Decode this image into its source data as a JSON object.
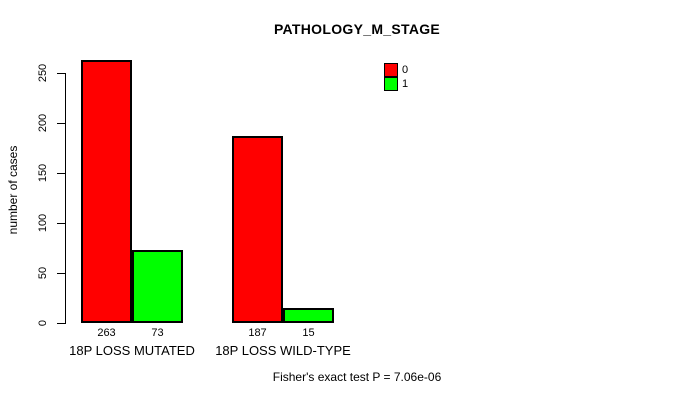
{
  "chart_data": {
    "type": "bar",
    "title": "PATHOLOGY_M_STAGE",
    "ylabel": "number of cases",
    "xlabel": "",
    "ylim": [
      0,
      250
    ],
    "yticks": [
      0,
      50,
      100,
      150,
      200,
      250
    ],
    "grid": false,
    "background": "#FFFFFF",
    "axis_color": "#000000",
    "categories": [
      "18P LOSS MUTATED",
      "18P LOSS WILD-TYPE"
    ],
    "series": [
      {
        "name": "0",
        "color": "#FF0000",
        "values": [
          263,
          187
        ]
      },
      {
        "name": "1",
        "color": "#00FF00",
        "values": [
          73,
          15
        ]
      }
    ],
    "legend": {
      "position": "top-right",
      "entries": [
        {
          "label": "0",
          "color": "#FF0000"
        },
        {
          "label": "1",
          "color": "#00FF00"
        }
      ]
    },
    "footnote": "Fisher's exact test P = 7.06e-06"
  }
}
